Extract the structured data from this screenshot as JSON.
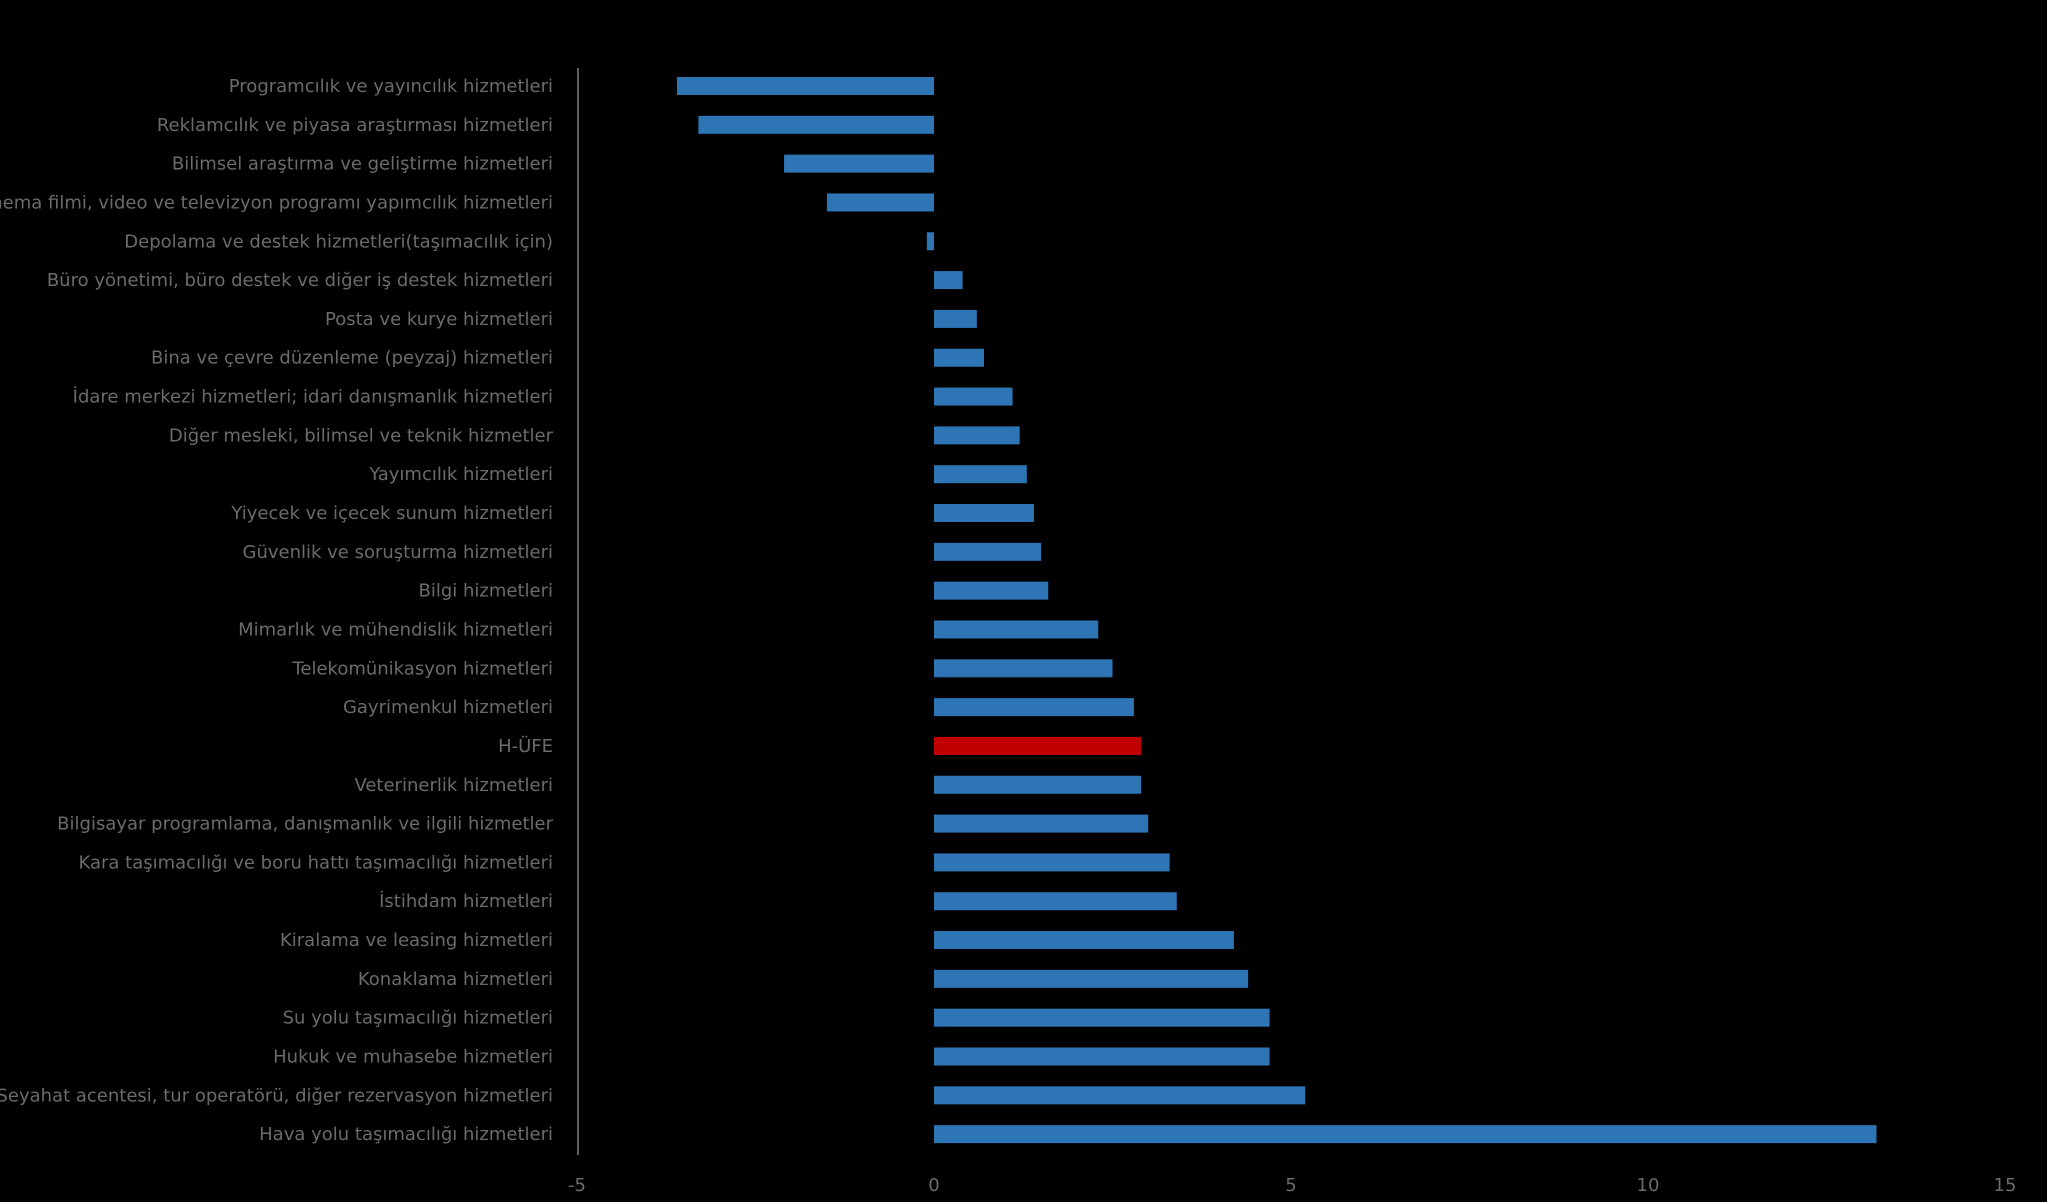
{
  "chart_data": {
    "type": "bar",
    "orientation": "horizontal",
    "title": "",
    "xlabel": "",
    "ylabel": "",
    "xlim": [
      -5,
      15
    ],
    "x_ticks": [
      "-5",
      "0",
      "5",
      "10",
      "15"
    ],
    "grid": false,
    "legend": "none",
    "colors": {
      "bar": "#2e75b6",
      "highlight": "#c00000",
      "background": "#000000",
      "text": "#6b6b6b",
      "axis": "#7f7f7f"
    },
    "highlight_category": "H-ÜFE",
    "categories": [
      "Programcılık ve yayıncılık hizmetleri",
      "Reklamcılık ve piyasa araştırması hizmetleri",
      "Bilimsel araştırma ve geliştirme hizmetleri",
      "Sinema filmi, video ve televizyon programı yapımcılık hizmetleri",
      "Depolama ve destek hizmetleri(taşımacılık için)",
      "Büro yönetimi, büro destek ve diğer iş destek hizmetleri",
      "Posta ve kurye hizmetleri",
      "Bina ve çevre düzenleme (peyzaj) hizmetleri",
      "İdare merkezi hizmetleri; idari danışmanlık hizmetleri",
      "Diğer mesleki, bilimsel ve teknik hizmetler",
      "Yayımcılık hizmetleri",
      "Yiyecek ve içecek sunum hizmetleri",
      "Güvenlik ve soruşturma hizmetleri",
      "Bilgi hizmetleri",
      "Mimarlık ve mühendislik hizmetleri",
      "Telekomünikasyon hizmetleri",
      "Gayrimenkul hizmetleri",
      "H-ÜFE",
      "Veterinerlik hizmetleri",
      "Bilgisayar programlama, danışmanlık ve ilgili hizmetler",
      "Kara taşımacılığı ve boru hattı taşımacılığı hizmetleri",
      "İstihdam hizmetleri",
      "Kiralama ve leasing hizmetleri",
      "Konaklama hizmetleri",
      "Su yolu taşımacılığı hizmetleri",
      "Hukuk ve muhasebe hizmetleri",
      "Seyahat acentesi, tur operatörü, diğer rezervasyon hizmetleri",
      "Hava yolu taşımacılığı hizmetleri"
    ],
    "values": [
      -3.6,
      -3.3,
      -2.1,
      -1.5,
      -0.1,
      0.4,
      0.6,
      0.7,
      1.1,
      1.2,
      1.3,
      1.4,
      1.5,
      1.6,
      2.3,
      2.5,
      2.8,
      2.9,
      2.9,
      3.0,
      3.3,
      3.4,
      4.2,
      4.4,
      4.7,
      4.7,
      5.2,
      13.2
    ]
  }
}
